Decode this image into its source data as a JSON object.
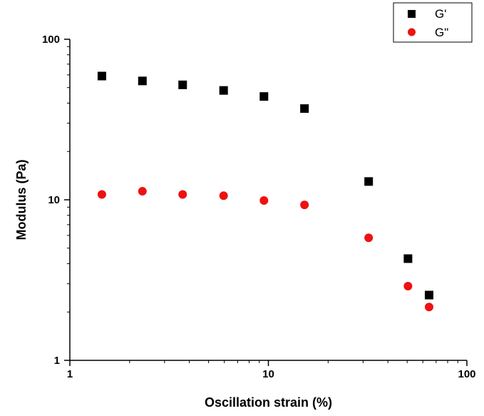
{
  "chart_data": {
    "type": "scatter",
    "xlabel": "Oscillation strain (%)",
    "ylabel": "Modulus (Pa)",
    "xscale": "log",
    "yscale": "log",
    "xlim": [
      1,
      100
    ],
    "ylim": [
      1,
      100
    ],
    "xticks": [
      "1",
      "10",
      "100"
    ],
    "yticks": [
      "1",
      "10",
      "100"
    ],
    "grid": false,
    "legend_position": "top-right",
    "series": [
      {
        "name": "G'",
        "marker": "square",
        "color": "#000000",
        "x": [
          1.45,
          2.32,
          3.7,
          5.95,
          9.5,
          15.2,
          32,
          50.5,
          64.5
        ],
        "y": [
          59,
          55,
          52,
          48,
          44,
          37,
          13,
          4.3,
          2.55
        ]
      },
      {
        "name": "G\"",
        "marker": "circle",
        "color": "#ee1111",
        "x": [
          1.45,
          2.32,
          3.7,
          5.95,
          9.5,
          15.2,
          32,
          50.5,
          64.5
        ],
        "y": [
          10.8,
          11.3,
          10.8,
          10.6,
          9.9,
          9.3,
          5.8,
          2.9,
          2.15
        ]
      }
    ]
  }
}
